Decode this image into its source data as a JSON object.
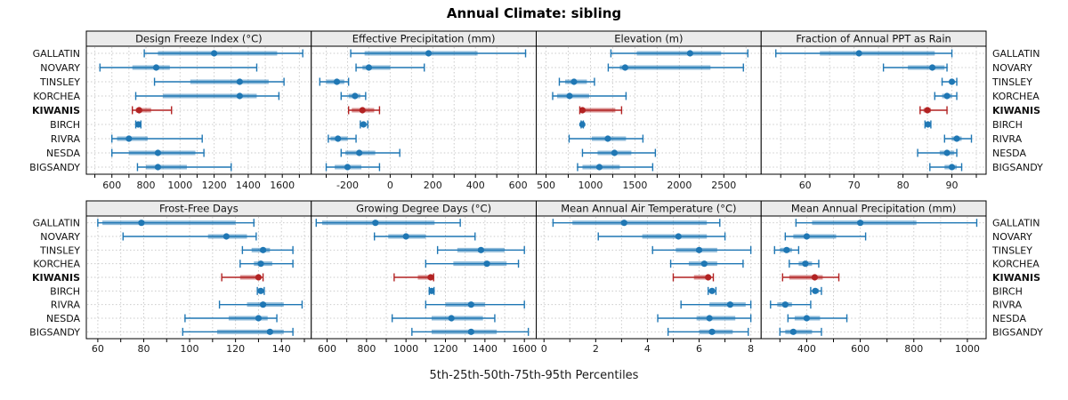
{
  "title": "Annual Climate: sibling",
  "xlabel": "5th-25th-50th-75th-95th Percentiles",
  "sites": [
    "GALLATIN",
    "NOVARY",
    "TINSLEY",
    "KORCHEA",
    "KIWANIS",
    "BIRCH",
    "RIVRA",
    "NESDA",
    "BIGSANDY"
  ],
  "highlight_site": "KIWANIS",
  "colors": {
    "series": "#1f77b4",
    "highlight": "#b22222",
    "grid": "#cbcbcb",
    "strip_bg": "#ebebeb",
    "border": "#000000"
  },
  "chart_data": {
    "type": "trellis-percentile-dotplot",
    "percentiles": [
      "5th",
      "25th",
      "50th",
      "75th",
      "95th"
    ],
    "legend_position": "none",
    "grid": "dotted",
    "panels": [
      {
        "title": "Design Freeze Index (°C)",
        "xlim": [
          450,
          1770
        ],
        "ticks": [
          600,
          800,
          1000,
          1200,
          1400,
          1600
        ],
        "grid_step": 100,
        "values": [
          [
            790,
            870,
            1200,
            1570,
            1720
          ],
          [
            530,
            720,
            860,
            940,
            1450
          ],
          [
            850,
            1060,
            1350,
            1520,
            1610
          ],
          [
            740,
            900,
            1350,
            1450,
            1580
          ],
          [
            720,
            740,
            760,
            830,
            950
          ],
          [
            740,
            748,
            755,
            762,
            770
          ],
          [
            600,
            630,
            700,
            810,
            1130
          ],
          [
            600,
            700,
            870,
            1090,
            1140
          ],
          [
            750,
            800,
            870,
            1040,
            1300
          ]
        ]
      },
      {
        "title": "Effective Precipitation (mm)",
        "xlim": [
          -370,
          685
        ],
        "ticks": [
          -200,
          0,
          200,
          400,
          600
        ],
        "grid_step": 100,
        "values": [
          [
            -185,
            -120,
            180,
            410,
            635
          ],
          [
            -160,
            -130,
            -100,
            0,
            160
          ],
          [
            -330,
            -300,
            -250,
            -215,
            -195
          ],
          [
            -230,
            -195,
            -165,
            -140,
            -115
          ],
          [
            -195,
            -180,
            -130,
            -75,
            -50
          ],
          [
            -140,
            -132,
            -125,
            -115,
            -105
          ],
          [
            -290,
            -280,
            -245,
            -200,
            -160
          ],
          [
            -230,
            -210,
            -145,
            -70,
            45
          ],
          [
            -300,
            -260,
            -200,
            -135,
            -50
          ]
        ]
      },
      {
        "title": "Elevation (m)",
        "xlim": [
          390,
          2920
        ],
        "ticks": [
          500,
          1000,
          1500,
          2000,
          2500
        ],
        "grid_step": 250,
        "values": [
          [
            1230,
            1520,
            2120,
            2470,
            2770
          ],
          [
            1200,
            1330,
            1390,
            2350,
            2720
          ],
          [
            650,
            715,
            815,
            960,
            1045
          ],
          [
            575,
            625,
            765,
            985,
            1400
          ],
          [
            880,
            895,
            910,
            1280,
            1350
          ],
          [
            895,
            902,
            908,
            914,
            920
          ],
          [
            760,
            1015,
            1195,
            1400,
            1590
          ],
          [
            910,
            1080,
            1270,
            1460,
            1730
          ],
          [
            855,
            910,
            1100,
            1330,
            1700
          ]
        ]
      },
      {
        "title": "Fraction of Annual PPT as Rain",
        "xlim": [
          51,
          97
        ],
        "ticks": [
          60,
          70,
          80,
          90
        ],
        "grid_step": 5,
        "values": [
          [
            54,
            63,
            71,
            86.5,
            90
          ],
          [
            76,
            81,
            86,
            88.5,
            89
          ],
          [
            88,
            89.5,
            90,
            90.5,
            91
          ],
          [
            86.5,
            88,
            89,
            90,
            91
          ],
          [
            83.5,
            84.2,
            85,
            85.7,
            89
          ],
          [
            84.5,
            84.8,
            85.1,
            85.4,
            85.7
          ],
          [
            88.5,
            90,
            91,
            92,
            94
          ],
          [
            83,
            87.5,
            89,
            90.5,
            91
          ],
          [
            85.5,
            88.5,
            90,
            91,
            92
          ]
        ]
      },
      {
        "title": "Frost-Free Days",
        "xlim": [
          55,
          153
        ],
        "ticks": [
          60,
          80,
          100,
          120,
          140
        ],
        "grid_step": 10,
        "values": [
          [
            60,
            62,
            79,
            120,
            128
          ],
          [
            71,
            108,
            116,
            125,
            129
          ],
          [
            123,
            127,
            132,
            135,
            145
          ],
          [
            122,
            128,
            131,
            136,
            145
          ],
          [
            114,
            122,
            130,
            131,
            132
          ],
          [
            129.5,
            130.2,
            131,
            131.8,
            132.5
          ],
          [
            113,
            125,
            132,
            141,
            149
          ],
          [
            98,
            117,
            130,
            134,
            138
          ],
          [
            97,
            112,
            135,
            141,
            145
          ]
        ]
      },
      {
        "title": "Growing Degree Days (°C)",
        "xlim": [
          520,
          1660
        ],
        "ticks": [
          600,
          800,
          1000,
          1200,
          1400,
          1600
        ],
        "grid_step": 100,
        "values": [
          [
            545,
            575,
            845,
            1145,
            1275
          ],
          [
            840,
            910,
            1000,
            1100,
            1350
          ],
          [
            1160,
            1260,
            1380,
            1500,
            1600
          ],
          [
            1100,
            1240,
            1410,
            1510,
            1570
          ],
          [
            940,
            1060,
            1125,
            1132,
            1140
          ],
          [
            1118,
            1124,
            1130,
            1136,
            1142
          ],
          [
            1100,
            1200,
            1330,
            1400,
            1600
          ],
          [
            930,
            1130,
            1230,
            1390,
            1450
          ],
          [
            1030,
            1130,
            1330,
            1460,
            1620
          ]
        ]
      },
      {
        "title": "Mean Annual Air Temperature (°C)",
        "xlim": [
          -0.3,
          8.4
        ],
        "ticks": [
          0,
          2,
          4,
          6,
          8
        ],
        "grid_step": 1,
        "values": [
          [
            0.35,
            1.1,
            3.1,
            6.3,
            6.8
          ],
          [
            2.1,
            3.8,
            5.2,
            6.3,
            7.0
          ],
          [
            4.2,
            5.1,
            6.0,
            6.7,
            8.0
          ],
          [
            4.9,
            5.6,
            6.2,
            6.7,
            7.7
          ],
          [
            5.0,
            5.8,
            6.35,
            6.45,
            6.55
          ],
          [
            6.35,
            6.42,
            6.5,
            6.57,
            6.65
          ],
          [
            5.3,
            6.4,
            7.2,
            7.8,
            8.0
          ],
          [
            4.4,
            5.9,
            6.4,
            7.4,
            8.0
          ],
          [
            4.8,
            6.0,
            6.5,
            7.3,
            7.9
          ]
        ]
      },
      {
        "title": "Mean Annual Precipitation (mm)",
        "xlim": [
          230,
          1070
        ],
        "ticks": [
          400,
          600,
          800,
          1000
        ],
        "grid_step": 100,
        "values": [
          [
            360,
            420,
            600,
            810,
            1035
          ],
          [
            320,
            350,
            400,
            510,
            620
          ],
          [
            280,
            300,
            325,
            345,
            370
          ],
          [
            335,
            370,
            395,
            420,
            445
          ],
          [
            310,
            335,
            430,
            460,
            520
          ],
          [
            415,
            425,
            432,
            445,
            455
          ],
          [
            265,
            290,
            320,
            345,
            415
          ],
          [
            330,
            355,
            400,
            450,
            550
          ],
          [
            300,
            320,
            350,
            420,
            455
          ]
        ]
      }
    ]
  }
}
